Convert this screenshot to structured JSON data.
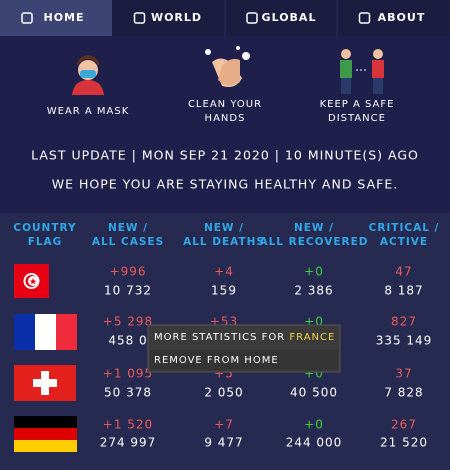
{
  "nav": [
    "HOME",
    "WORLD",
    "GLOBAL",
    "ABOUT"
  ],
  "tips": [
    "WEAR A MASK",
    "CLEAN YOUR HANDS",
    "KEEP A SAFE DISTANCE"
  ],
  "last_update": "LAST UPDATE |  MON SEP 21 2020  |  10 MINUTE(S) AGO",
  "message": "WE HOPE YOU ARE STAYING HEALTHY AND SAFE.",
  "table": {
    "headers": [
      "COUNTRY FLAG",
      "NEW / ALL CASES",
      "NEW / ALL DEATHS",
      "NEW / ALL RECOVERED",
      "CRITICAL / ACTIVE"
    ],
    "rows": [
      [
        "+996",
        "10 732",
        "+4",
        "159",
        "+0",
        "2 386",
        "47",
        "8 187"
      ],
      [
        "+5 298",
        "458 0",
        "+53",
        null,
        "+0",
        null,
        "827",
        "335 149"
      ],
      [
        "+1 095",
        "50 378",
        "+5",
        "2 050",
        "+0",
        "40 500",
        "37",
        "7 828"
      ],
      [
        "+1 520",
        "274 997",
        "+7",
        "9 477",
        "+0",
        "244 000",
        "267",
        "21 520"
      ]
    ]
  },
  "menu": {
    "more": "MORE STATISTICS FOR ",
    "country": "FRANCE",
    "remove": "REMOVE FROM HOME"
  }
}
